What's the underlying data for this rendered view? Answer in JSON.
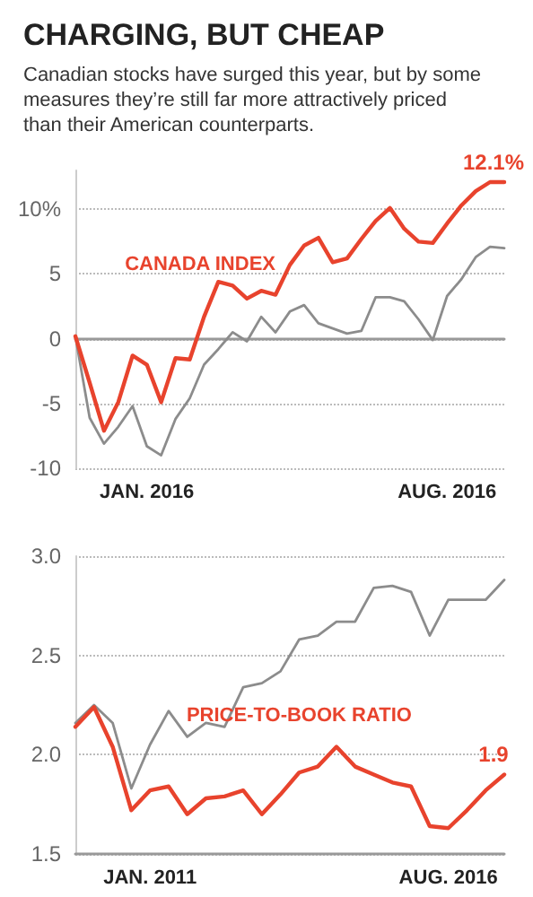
{
  "chart_data": [
    {
      "type": "line",
      "title": "CHARGING, BUT CHEAP",
      "subtitle": "Canadian stocks have surged this year, but by some measures they’re still far more attractively priced than their American counterparts.",
      "categories": [
        null,
        null,
        null,
        null,
        null,
        "JAN. 2016",
        null,
        null,
        null,
        null,
        null,
        null,
        null,
        null,
        null,
        null,
        null,
        null,
        null,
        null,
        null,
        null,
        null,
        null,
        null,
        null,
        "AUG. 2016",
        null,
        null,
        null,
        null
      ],
      "series": [
        {
          "name": "CANADA INDEX",
          "color": "#e8432d",
          "values": [
            0.2,
            -3.4,
            -7.1,
            -4.9,
            -1.3,
            -2.0,
            -4.9,
            -1.5,
            -1.6,
            1.7,
            4.4,
            4.1,
            3.1,
            3.7,
            3.4,
            5.7,
            7.2,
            7.8,
            5.9,
            6.2,
            7.7,
            9.1,
            10.1,
            8.5,
            7.5,
            7.4,
            8.9,
            10.3,
            11.4,
            12.1,
            12.1
          ],
          "value_labels": [
            null,
            null,
            null,
            null,
            null,
            null,
            null,
            null,
            null,
            null,
            null,
            null,
            null,
            null,
            null,
            null,
            null,
            null,
            null,
            null,
            null,
            null,
            null,
            null,
            null,
            null,
            null,
            null,
            null,
            null,
            "12.1%"
          ]
        },
        {
          "color": "#8c8c8c",
          "values": [
            0.2,
            -6.1,
            -8.1,
            -6.8,
            -5.2,
            -8.3,
            -9.0,
            -6.2,
            -4.6,
            -2.0,
            -0.8,
            0.5,
            -0.2,
            1.7,
            0.5,
            2.1,
            2.6,
            1.2,
            0.8,
            0.4,
            0.6,
            3.2,
            3.2,
            2.9,
            1.5,
            -0.1,
            3.3,
            4.6,
            6.3,
            7.1,
            7.0
          ]
        }
      ],
      "ylim": [
        -10,
        13
      ],
      "yticks": [
        -10,
        -5,
        0,
        5,
        {
          "value": 10,
          "label": "10%"
        }
      ],
      "grid": "y"
    },
    {
      "type": "line",
      "categories": [
        null,
        null,
        null,
        null,
        "JAN. 2011",
        null,
        null,
        null,
        null,
        null,
        null,
        null,
        null,
        null,
        null,
        null,
        null,
        null,
        null,
        null,
        "AUG. 2016",
        null,
        null,
        null
      ],
      "series": [
        {
          "color": "#8c8c8c",
          "values": [
            2.16,
            2.25,
            2.16,
            1.83,
            2.05,
            2.22,
            2.09,
            2.16,
            2.14,
            2.34,
            2.36,
            2.42,
            2.58,
            2.6,
            2.67,
            2.67,
            2.84,
            2.85,
            2.82,
            2.6,
            2.78,
            2.78,
            2.78,
            2.88
          ]
        },
        {
          "name": "PRICE-TO-BOOK RATIO",
          "color": "#e8432d",
          "values": [
            2.14,
            2.24,
            2.04,
            1.72,
            1.82,
            1.84,
            1.7,
            1.78,
            1.79,
            1.82,
            1.7,
            1.8,
            1.91,
            1.94,
            2.04,
            1.94,
            1.9,
            1.86,
            1.84,
            1.64,
            1.63,
            1.72,
            1.82,
            1.9
          ],
          "value_labels": [
            null,
            null,
            null,
            null,
            null,
            null,
            null,
            null,
            null,
            null,
            null,
            null,
            null,
            null,
            null,
            null,
            null,
            null,
            null,
            null,
            null,
            null,
            null,
            "1.9"
          ]
        }
      ],
      "ylim": [
        1.5,
        3.0
      ],
      "yticks": [
        1.5,
        {
          "value": 2,
          "label": "2.0"
        },
        2.5,
        {
          "value": 3,
          "label": "3.0"
        }
      ],
      "grid": "y"
    }
  ]
}
